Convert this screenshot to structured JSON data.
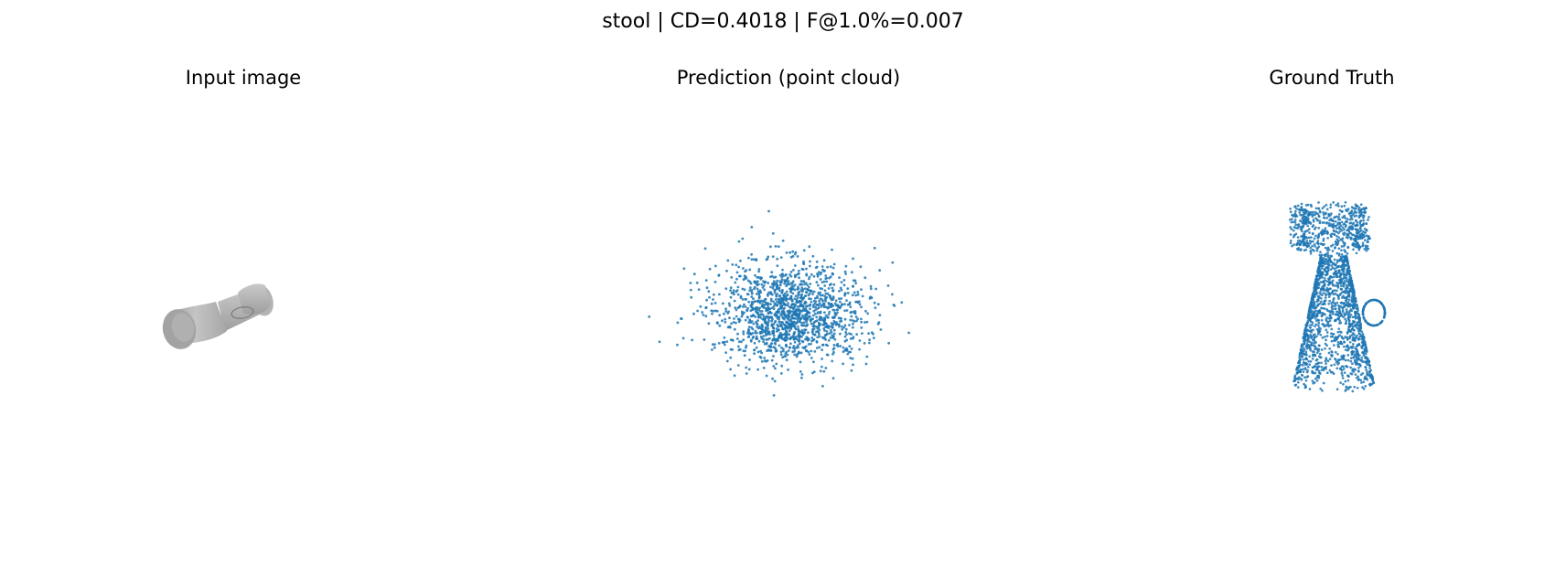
{
  "figure": {
    "suptitle": "stool | CD=0.4018 | F@1.0%=0.007"
  },
  "panels": {
    "input": {
      "title": "Input image",
      "object": "stool"
    },
    "prediction": {
      "title": "Prediction (point cloud)"
    },
    "ground_truth": {
      "title": "Ground Truth"
    }
  },
  "colors": {
    "points": "#1f77b4",
    "render_light": "#c8c8c8",
    "render_mid": "#a8a8a8",
    "render_dark": "#8a8a8a"
  },
  "chart_data": [
    {
      "type": "scatter",
      "name": "prediction",
      "title": "Prediction (point cloud)",
      "description_of_data": "diffuse gaussian-like blob of 3D points projected to 2D",
      "x": [
        -1.5,
        1.6
      ],
      "y": [
        -1.2,
        1.0
      ],
      "center": [
        0,
        0
      ],
      "spread": [
        0.38,
        0.3
      ],
      "num_points": 1500,
      "axis": "off"
    },
    {
      "type": "scatter",
      "name": "ground_truth",
      "title": "Ground Truth",
      "description_of_data": "stool-shaped point cloud: cylindrical seat on top, conical base below, small ring handle on right",
      "num_points": 2200,
      "axis": "off"
    }
  ]
}
